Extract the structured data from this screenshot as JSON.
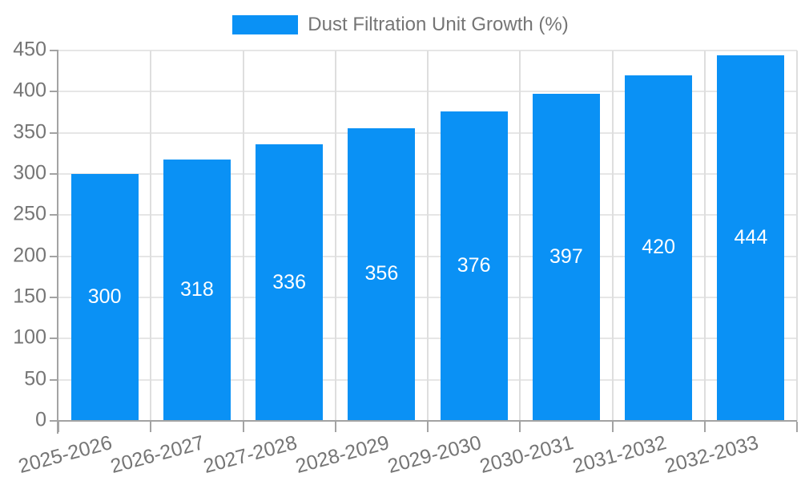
{
  "legend": {
    "label": "Dust Filtration Unit Growth (%)"
  },
  "chart_data": {
    "type": "bar",
    "title": "",
    "series_name": "Dust Filtration Unit Growth (%)",
    "categories": [
      "2025-2026",
      "2026-2027",
      "2027-2028",
      "2028-2029",
      "2029-2030",
      "2030-2031",
      "2031-2032",
      "2032-2033"
    ],
    "values": [
      300,
      318,
      336,
      356,
      376,
      397,
      420,
      444
    ],
    "xlabel": "",
    "ylabel": "",
    "ylim": [
      0,
      450
    ],
    "yticks": [
      0,
      50,
      100,
      150,
      200,
      250,
      300,
      350,
      400,
      450
    ],
    "grid": true,
    "legend_position": "top-center",
    "x_label_rotation_deg": -15,
    "value_labels": "centered-inside-bars",
    "colors": {
      "bar": "#0a91f5",
      "value_label": "#ffffff",
      "tick_label": "#757575",
      "legend_text": "#757575",
      "gridline": "#e6e6e6",
      "gridline_vertical": "#dedede",
      "axis_line": "#a3a3a3",
      "background": "#ffffff"
    }
  }
}
